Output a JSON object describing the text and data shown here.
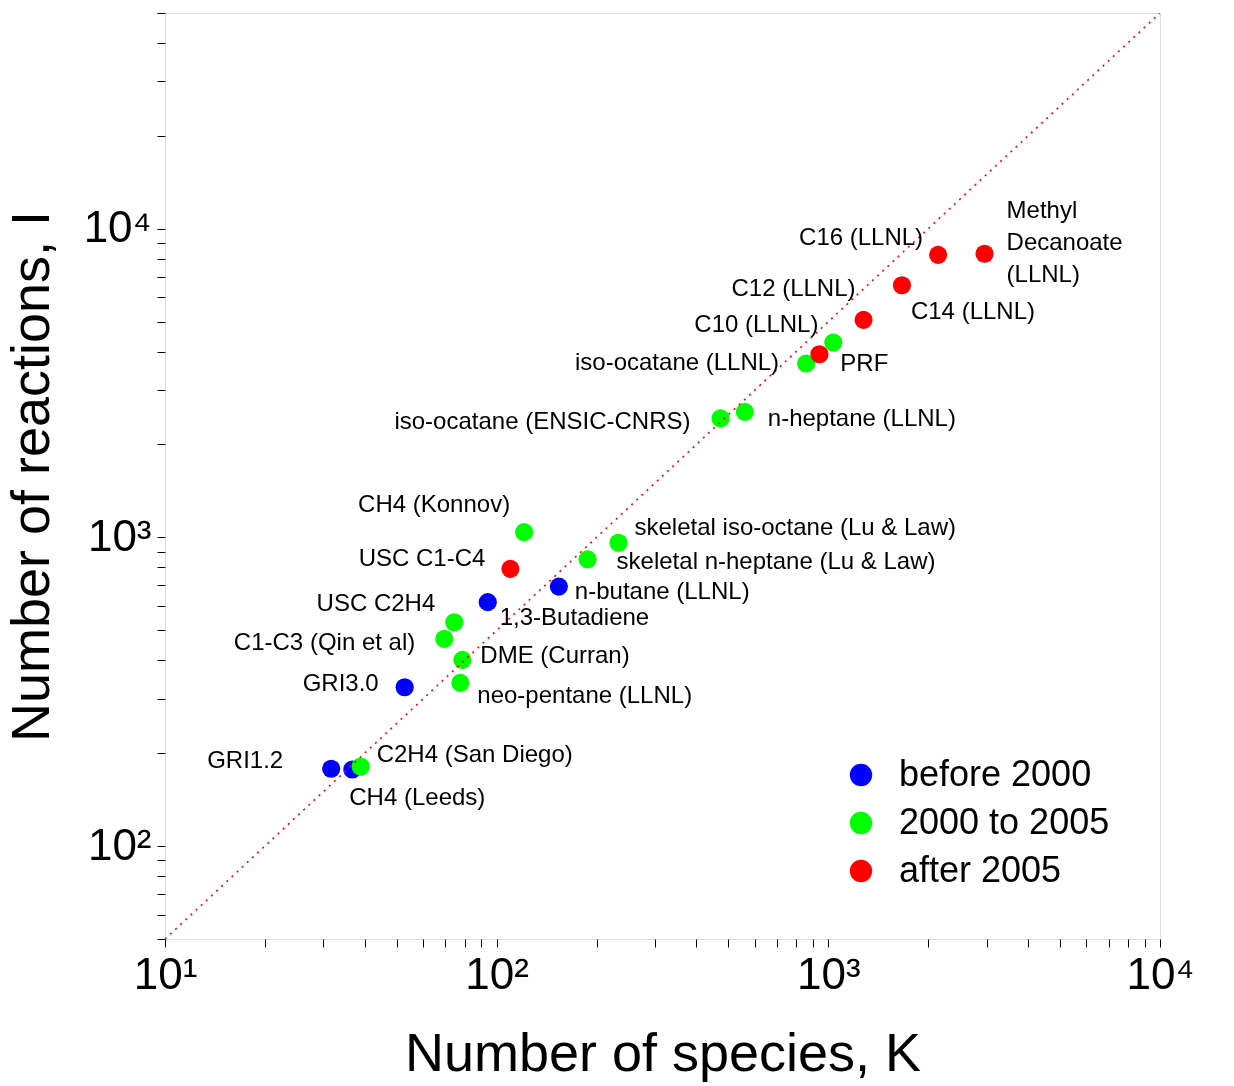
{
  "chart_data": {
    "type": "scatter",
    "xlabel": "Number of species, K",
    "ylabel": "Number of reactions, I",
    "log": "xy",
    "grid": false,
    "marker": "circle",
    "legend": "bottom right",
    "xlim": [
      10,
      10000
    ],
    "ylim": [
      50,
      50000
    ],
    "xticks": [
      {
        "value": 10,
        "label": "10¹"
      },
      {
        "value": 20,
        "label": null
      },
      {
        "value": 30,
        "label": null
      },
      {
        "value": 40,
        "label": null
      },
      {
        "value": 50,
        "label": null
      },
      {
        "value": 60,
        "label": null
      },
      {
        "value": 70,
        "label": null
      },
      {
        "value": 80,
        "label": null
      },
      {
        "value": 90,
        "label": null
      },
      {
        "value": 100,
        "label": "10²"
      },
      {
        "value": 200,
        "label": null
      },
      {
        "value": 300,
        "label": null
      },
      {
        "value": 400,
        "label": null
      },
      {
        "value": 500,
        "label": null
      },
      {
        "value": 600,
        "label": null
      },
      {
        "value": 700,
        "label": null
      },
      {
        "value": 800,
        "label": null
      },
      {
        "value": 900,
        "label": null
      },
      {
        "value": 1000,
        "label": "10³"
      },
      {
        "value": 2000,
        "label": null
      },
      {
        "value": 3000,
        "label": null
      },
      {
        "value": 4000,
        "label": null
      },
      {
        "value": 5000,
        "label": null
      },
      {
        "value": 6000,
        "label": null
      },
      {
        "value": 7000,
        "label": null
      },
      {
        "value": 8000,
        "label": null
      },
      {
        "value": 9000,
        "label": null
      },
      {
        "value": 10000,
        "label": "10⁴"
      }
    ],
    "yticks": [
      {
        "value": 50,
        "label": null
      },
      {
        "value": 60,
        "label": null
      },
      {
        "value": 70,
        "label": null
      },
      {
        "value": 80,
        "label": null
      },
      {
        "value": 90,
        "label": null
      },
      {
        "value": 100,
        "label": "10²"
      },
      {
        "value": 200,
        "label": null
      },
      {
        "value": 300,
        "label": null
      },
      {
        "value": 400,
        "label": null
      },
      {
        "value": 500,
        "label": null
      },
      {
        "value": 600,
        "label": null
      },
      {
        "value": 700,
        "label": null
      },
      {
        "value": 800,
        "label": null
      },
      {
        "value": 900,
        "label": null
      },
      {
        "value": 1000,
        "label": "10³"
      },
      {
        "value": 2000,
        "label": null
      },
      {
        "value": 3000,
        "label": null
      },
      {
        "value": 4000,
        "label": null
      },
      {
        "value": 5000,
        "label": null
      },
      {
        "value": 6000,
        "label": null
      },
      {
        "value": 7000,
        "label": null
      },
      {
        "value": 8000,
        "label": null
      },
      {
        "value": 9000,
        "label": null
      },
      {
        "value": 10000,
        "label": "10⁴"
      },
      {
        "value": 20000,
        "label": null
      },
      {
        "value": 30000,
        "label": null
      },
      {
        "value": 40000,
        "label": null
      },
      {
        "value": 50000,
        "label": null
      }
    ],
    "series": [
      {
        "name": "before 2000",
        "color": "#0000ff",
        "x": [
          31.7,
          36.7,
          52.8,
          94,
          154
        ],
        "values": [
          178,
          177,
          327,
          617,
          693
        ]
      },
      {
        "name": "2000 to 2005",
        "color": "#00ff00",
        "x": [
          38.9,
          69.5,
          74.5,
          78.8,
          77.7,
          121,
          188,
          233,
          473,
          560,
          857,
          1035
        ],
        "values": [
          181,
          469,
          531,
          401,
          338,
          1040,
          849,
          961,
          2430,
          2550,
          3660,
          4280
        ]
      },
      {
        "name": "after 2005",
        "color": "#ff0000",
        "x": [
          110,
          940,
          1277,
          1667,
          2143,
          2958
        ],
        "values": [
          791,
          3920,
          5070,
          6560,
          8230,
          8300
        ]
      },
      {
        "type": "line",
        "color": "#ff0000",
        "line_style": "dotted",
        "marker": "none",
        "x": [
          10,
          10000
        ],
        "values": [
          50,
          50000
        ]
      }
    ],
    "annotations": [
      {
        "text": "GRI1.2",
        "x": 31.7,
        "y": 178
      },
      {
        "text": "CH4 (Leeds)",
        "x": 36.7,
        "y": 177
      },
      {
        "text": "C2H4 (San Diego)",
        "x": 38.9,
        "y": 181
      },
      {
        "text": "GRI3.0",
        "x": 52.8,
        "y": 327
      },
      {
        "text": "C1-C3 (Qin et al)",
        "x": 69.5,
        "y": 469
      },
      {
        "text": "USC C2H4",
        "x": 74.5,
        "y": 531
      },
      {
        "text": "DME (Curran)",
        "x": 78.8,
        "y": 401
      },
      {
        "text": "neo-pentane (LLNL)",
        "x": 77.7,
        "y": 338
      },
      {
        "text": "1,3-Butadiene",
        "x": 94,
        "y": 617
      },
      {
        "text": "n-butane (LLNL)",
        "x": 154,
        "y": 693
      },
      {
        "text": "USC C1-C4",
        "x": 110,
        "y": 791
      },
      {
        "text": "CH4 (Konnov)",
        "x": 121,
        "y": 1040
      },
      {
        "text": "skeletal n-heptane (Lu & Law)",
        "x": 188,
        "y": 849
      },
      {
        "text": "skeletal iso-octane (Lu & Law)",
        "x": 233,
        "y": 961
      },
      {
        "text": "iso-ocatane (ENSIC-CNRS)",
        "x": 473,
        "y": 2430
      },
      {
        "text": "n-heptane (LLNL)",
        "x": 560,
        "y": 2550
      },
      {
        "text": "iso-ocatane (LLNL)",
        "x": 857,
        "y": 3660
      },
      {
        "text": "PRF",
        "x": 1035,
        "y": 4280
      },
      {
        "text": "C10 (LLNL)",
        "x": 940,
        "y": 3920
      },
      {
        "text": "C12 (LLNL)",
        "x": 1277,
        "y": 5070
      },
      {
        "text": "C14 (LLNL)",
        "x": 1667,
        "y": 6560
      },
      {
        "text": "C16 (LLNL)",
        "x": 2143,
        "y": 8230
      },
      {
        "text": "Methyl\nDecanoate\n(LLNL)",
        "x": 2958,
        "y": 8300
      }
    ]
  }
}
